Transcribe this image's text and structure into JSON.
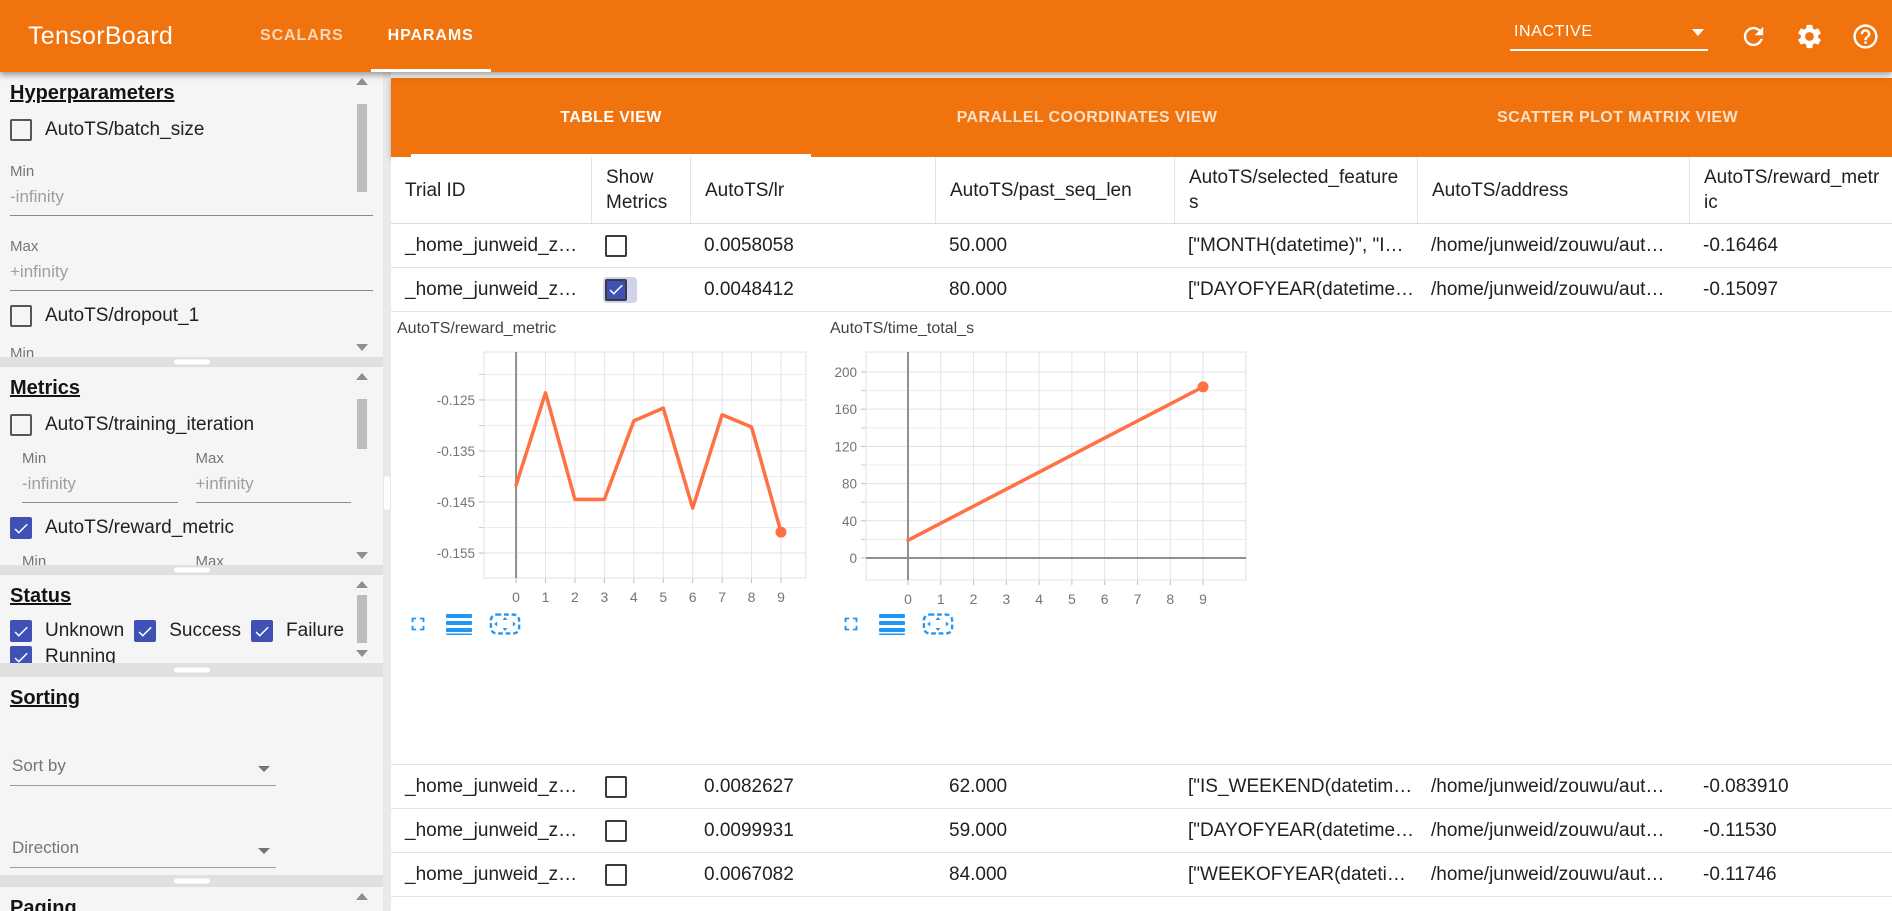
{
  "colors": {
    "toolbar_orange": "#f0730e",
    "accent_blue": "#2196f3",
    "checkbox_blue": "#3f51b5",
    "chart_line_orange": "#ff7043"
  },
  "toolbar": {
    "logo": "TensorBoard",
    "tabs": [
      {
        "label": "SCALARS",
        "active": false
      },
      {
        "label": "HPARAMS",
        "active": true
      }
    ],
    "run_selector": {
      "value": "INACTIVE"
    }
  },
  "sidebar": {
    "hyperparameters": {
      "title": "Hyperparameters",
      "items": [
        {
          "label": "AutoTS/batch_size",
          "checked": false,
          "min_label": "Min",
          "min_value": "-infinity",
          "max_label": "Max",
          "max_value": "+infinity"
        },
        {
          "label": "AutoTS/dropout_1",
          "checked": false,
          "min_label": "Min"
        }
      ]
    },
    "metrics": {
      "title": "Metrics",
      "items": [
        {
          "label": "AutoTS/training_iteration",
          "checked": false,
          "min_label": "Min",
          "min_value": "-infinity",
          "max_label": "Max",
          "max_value": "+infinity"
        },
        {
          "label": "AutoTS/reward_metric",
          "checked": true,
          "min_label": "Min",
          "max_label": "Max"
        }
      ]
    },
    "status": {
      "title": "Status",
      "items": [
        {
          "label": "Unknown",
          "checked": true
        },
        {
          "label": "Success",
          "checked": true
        },
        {
          "label": "Failure",
          "checked": true
        },
        {
          "label": "Running",
          "checked": true
        }
      ]
    },
    "sorting": {
      "title": "Sorting",
      "sort_by_placeholder": "Sort by",
      "direction_placeholder": "Direction"
    },
    "paging": {
      "title": "Paging"
    }
  },
  "main": {
    "view_tabs": [
      {
        "label": "TABLE VIEW",
        "active": true
      },
      {
        "label": "PARALLEL COORDINATES VIEW",
        "active": false
      },
      {
        "label": "SCATTER PLOT MATRIX VIEW",
        "active": false
      }
    ],
    "table": {
      "columns": [
        "Trial ID",
        "Show Metrics",
        "AutoTS/lr",
        "AutoTS/past_seq_len",
        "AutoTS/selected_features",
        "AutoTS/address",
        "AutoTS/reward_metric"
      ],
      "rows": [
        {
          "trial_id": "_home_junweid_z…",
          "show_metrics": false,
          "lr": "0.0058058",
          "past_seq_len": "50.000",
          "selected_features": "[\"MONTH(datetime)\", \"I…",
          "address": "/home/junweid/zouwu/aut…",
          "reward_metric": "-0.16464"
        },
        {
          "trial_id": "_home_junweid_z…",
          "show_metrics": true,
          "lr": "0.0048412",
          "past_seq_len": "80.000",
          "selected_features": "[\"DAYOFYEAR(datetime…",
          "address": "/home/junweid/zouwu/aut…",
          "reward_metric": "-0.15097"
        },
        {
          "trial_id": "_home_junweid_z…",
          "show_metrics": false,
          "lr": "0.0082627",
          "past_seq_len": "62.000",
          "selected_features": "[\"IS_WEEKEND(datetim…",
          "address": "/home/junweid/zouwu/aut…",
          "reward_metric": "-0.083910"
        },
        {
          "trial_id": "_home_junweid_z…",
          "show_metrics": false,
          "lr": "0.0099931",
          "past_seq_len": "59.000",
          "selected_features": "[\"DAYOFYEAR(datetime…",
          "address": "/home/junweid/zouwu/aut…",
          "reward_metric": "-0.11530"
        },
        {
          "trial_id": "_home_junweid_z…",
          "show_metrics": false,
          "lr": "0.0067082",
          "past_seq_len": "84.000",
          "selected_features": "[\"WEEKOFYEAR(dateti…",
          "address": "/home/junweid/zouwu/aut…",
          "reward_metric": "-0.11746"
        }
      ]
    }
  },
  "chart_data": [
    {
      "type": "line",
      "title": "AutoTS/reward_metric",
      "x": [
        0,
        1,
        2,
        3,
        4,
        5,
        6,
        7,
        8,
        9
      ],
      "y": [
        -0.1417,
        -0.1236,
        -0.1445,
        -0.1445,
        -0.1291,
        -0.1266,
        -0.1462,
        -0.1279,
        -0.1303,
        -0.1509
      ],
      "xlim": [
        -1.09,
        9.85
      ],
      "ylim": [
        -0.1599,
        -0.1156
      ],
      "xticks": [
        0,
        1,
        2,
        3,
        4,
        5,
        6,
        7,
        8,
        9
      ],
      "yticks": [
        -0.125,
        -0.135,
        -0.145,
        -0.155
      ],
      "ytick_labels": [
        "-0.125",
        "-0.135",
        "-0.145",
        "-0.155"
      ],
      "yminor": [
        -0.12,
        -0.13,
        -0.14,
        -0.15
      ],
      "xlabel": "",
      "ylabel": "",
      "grid": true,
      "legend": false,
      "line_color": "#ff7043",
      "end_dot": true
    },
    {
      "type": "line",
      "title": "AutoTS/time_total_s",
      "x": [
        0,
        9
      ],
      "y": [
        19,
        184
      ],
      "xlim": [
        -1.28,
        10.31
      ],
      "ylim": [
        -23.7,
        221.5
      ],
      "xticks": [
        0,
        1,
        2,
        3,
        4,
        5,
        6,
        7,
        8,
        9
      ],
      "yticks": [
        0,
        40,
        80,
        120,
        160,
        200
      ],
      "ytick_labels": [
        "0",
        "40",
        "80",
        "120",
        "160",
        "200"
      ],
      "yminor": [
        20,
        60,
        100,
        140,
        180
      ],
      "xlabel": "",
      "ylabel": "",
      "grid": true,
      "legend": false,
      "line_color": "#ff7043",
      "end_dot": true
    }
  ]
}
